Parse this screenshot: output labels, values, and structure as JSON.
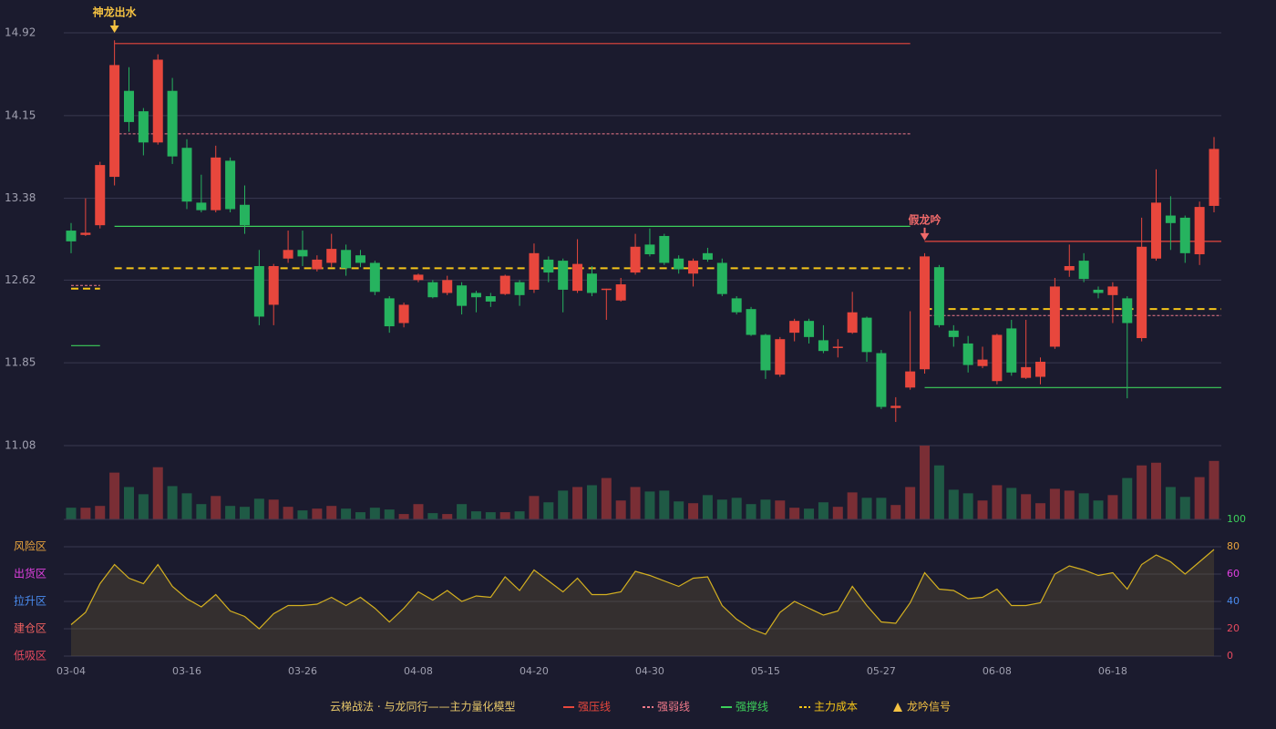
{
  "chart_data": {
    "type": "candlestick",
    "categories": [
      "03-04",
      null,
      null,
      null,
      null,
      null,
      null,
      null,
      "03-16",
      null,
      null,
      null,
      null,
      null,
      null,
      null,
      "03-26",
      null,
      null,
      null,
      null,
      null,
      null,
      null,
      "04-08",
      null,
      null,
      null,
      null,
      null,
      null,
      null,
      "04-20",
      null,
      null,
      null,
      null,
      null,
      null,
      null,
      "04-30",
      null,
      null,
      null,
      null,
      null,
      null,
      null,
      "05-15",
      null,
      null,
      null,
      null,
      null,
      null,
      null,
      "05-27",
      null,
      null,
      null,
      null,
      null,
      null,
      null,
      "06-08",
      null,
      null,
      null,
      null,
      null,
      null,
      null,
      "06-18",
      null,
      null,
      null,
      null,
      null,
      null,
      null
    ],
    "open": [
      13.08,
      13.04,
      13.13,
      13.58,
      14.38,
      14.19,
      13.9,
      14.38,
      13.85,
      13.34,
      13.27,
      13.73,
      13.32,
      12.75,
      12.39,
      12.82,
      12.9,
      12.72,
      12.78,
      12.9,
      12.85,
      12.78,
      12.45,
      12.22,
      12.62,
      12.6,
      12.5,
      12.57,
      12.5,
      12.47,
      12.49,
      12.6,
      12.53,
      12.81,
      12.8,
      12.52,
      12.68,
      12.53,
      12.43,
      12.69,
      12.95,
      13.03,
      12.82,
      12.68,
      12.87,
      12.78,
      12.45,
      12.35,
      12.11,
      11.74,
      12.13,
      12.24,
      12.06,
      11.99,
      12.13,
      12.27,
      11.94,
      11.43,
      11.62,
      11.79,
      12.74,
      12.15,
      12.03,
      11.82,
      11.68,
      12.17,
      11.71,
      11.72,
      12.0,
      12.71,
      12.8,
      12.53,
      12.48,
      12.45,
      12.08,
      12.82,
      13.22,
      13.2,
      12.86,
      13.31
    ],
    "close": [
      12.98,
      13.06,
      13.69,
      14.62,
      14.09,
      13.9,
      14.67,
      13.77,
      13.35,
      13.27,
      13.76,
      13.28,
      13.13,
      12.28,
      12.75,
      12.9,
      12.84,
      12.81,
      12.91,
      12.73,
      12.78,
      12.51,
      12.19,
      12.39,
      12.67,
      12.46,
      12.62,
      12.38,
      12.46,
      12.42,
      12.66,
      12.48,
      12.87,
      12.69,
      12.53,
      12.77,
      12.5,
      12.54,
      12.58,
      12.93,
      12.86,
      12.78,
      12.72,
      12.8,
      12.81,
      12.49,
      12.32,
      12.11,
      11.78,
      12.07,
      12.24,
      12.09,
      11.96,
      12.0,
      12.32,
      11.95,
      11.44,
      11.45,
      11.77,
      12.84,
      12.2,
      12.09,
      11.83,
      11.88,
      12.11,
      11.76,
      11.81,
      11.86,
      12.56,
      12.75,
      12.63,
      12.5,
      12.56,
      12.22,
      12.93,
      13.34,
      13.15,
      12.87,
      13.3,
      13.84
    ],
    "high": [
      13.15,
      13.38,
      13.72,
      14.85,
      14.6,
      14.22,
      14.72,
      14.5,
      13.93,
      13.6,
      13.87,
      13.76,
      13.5,
      12.9,
      12.77,
      13.08,
      13.08,
      12.85,
      13.05,
      12.95,
      12.9,
      12.8,
      12.47,
      12.41,
      12.68,
      12.62,
      12.66,
      12.6,
      12.52,
      12.5,
      12.67,
      12.62,
      12.96,
      12.84,
      12.82,
      13.0,
      12.75,
      12.54,
      12.64,
      13.05,
      13.1,
      13.05,
      12.85,
      12.82,
      12.92,
      12.82,
      12.47,
      12.37,
      12.12,
      12.09,
      12.26,
      12.26,
      12.2,
      12.07,
      12.51,
      12.28,
      11.97,
      11.53,
      12.33,
      12.87,
      12.76,
      12.2,
      12.1,
      12.0,
      12.12,
      12.25,
      12.25,
      11.9,
      12.64,
      12.95,
      12.87,
      12.56,
      12.6,
      12.47,
      13.2,
      13.65,
      13.4,
      13.22,
      13.35,
      13.95
    ],
    "low": [
      12.87,
      13.03,
      13.1,
      13.5,
      14.0,
      13.78,
      13.88,
      13.7,
      13.28,
      13.25,
      13.25,
      13.25,
      13.05,
      12.2,
      12.2,
      12.78,
      12.75,
      12.7,
      12.74,
      12.66,
      12.74,
      12.48,
      12.13,
      12.18,
      12.6,
      12.45,
      12.48,
      12.3,
      12.32,
      12.37,
      12.48,
      12.38,
      12.5,
      12.6,
      12.32,
      12.5,
      12.47,
      12.25,
      12.42,
      12.67,
      12.84,
      12.76,
      12.68,
      12.56,
      12.79,
      12.47,
      12.3,
      12.1,
      11.7,
      11.72,
      12.05,
      12.03,
      11.94,
      11.9,
      12.12,
      11.86,
      11.42,
      11.3,
      11.6,
      11.75,
      12.18,
      12.0,
      11.76,
      11.8,
      11.65,
      11.73,
      11.7,
      11.65,
      11.98,
      12.65,
      12.6,
      12.45,
      12.22,
      11.52,
      12.05,
      12.8,
      12.9,
      12.78,
      12.76,
      13.25
    ],
    "volume": [
      13,
      13,
      15,
      52,
      36,
      28,
      58,
      37,
      29,
      17,
      26,
      15,
      14,
      23,
      22,
      14,
      10,
      12,
      15,
      12,
      8,
      13,
      11,
      6,
      17,
      7,
      6,
      17,
      9,
      8,
      8,
      9,
      26,
      19,
      32,
      36,
      38,
      46,
      21,
      36,
      31,
      32,
      20,
      18,
      27,
      22,
      24,
      17,
      22,
      21,
      13,
      12,
      19,
      14,
      30,
      24,
      24,
      16,
      36,
      82,
      60,
      33,
      29,
      21,
      38,
      35,
      28,
      18,
      34,
      32,
      29,
      21,
      27,
      46,
      60,
      63,
      36,
      25,
      47,
      65
    ],
    "up_color": "#e8473d",
    "down_color": "#26b35f",
    "up_volume_color": "#7a2e35",
    "down_volume_color": "#1f5a45",
    "ylim": [
      11.08,
      14.92
    ],
    "yticks": [
      14.92,
      14.15,
      13.38,
      12.62,
      11.85,
      11.08
    ],
    "grid": true,
    "levels": [
      {
        "name": "强压线",
        "color": "#e8473d",
        "dash": false,
        "segments": [
          {
            "start": 3,
            "end": 58,
            "value": 14.82
          },
          {
            "start": 59,
            "end": 79,
            "value": 12.98
          }
        ]
      },
      {
        "name": "强弱线",
        "color": "#f07a8a",
        "dash": true,
        "segments": [
          {
            "start": 0,
            "end": 2,
            "value": 12.57
          },
          {
            "start": 3,
            "end": 58,
            "value": 13.98
          },
          {
            "start": 59,
            "end": 79,
            "value": 12.29
          }
        ]
      },
      {
        "name": "强撑线",
        "color": "#3ccf5a",
        "dash": false,
        "segments": [
          {
            "start": 0,
            "end": 2,
            "value": 12.01
          },
          {
            "start": 3,
            "end": 58,
            "value": 13.12
          },
          {
            "start": 59,
            "end": 79,
            "value": 11.62
          }
        ]
      },
      {
        "name": "主力成本",
        "color": "#f5c518",
        "dash": true,
        "segments": [
          {
            "start": 0,
            "end": 2,
            "value": 12.54
          },
          {
            "start": 3,
            "end": 58,
            "value": 12.73
          },
          {
            "start": 59,
            "end": 79,
            "value": 12.35
          }
        ]
      }
    ],
    "signals": [
      {
        "index": 3,
        "label": "神龙出水",
        "color": "#f5c242"
      },
      {
        "index": 59,
        "label": "假龙吟",
        "color": "#f06a6a"
      }
    ],
    "signal_legend": {
      "name": "龙吟信号",
      "color": "#f5c242"
    },
    "legend_title": "云梯战法 · 与龙同行——主力量化模型",
    "indicator": {
      "values": [
        23,
        32,
        53,
        67,
        57,
        53,
        67,
        51,
        42,
        36,
        45,
        33,
        29,
        20,
        31,
        37,
        37,
        38,
        43,
        37,
        43,
        35,
        25,
        35,
        47,
        41,
        48,
        40,
        44,
        43,
        58,
        48,
        63,
        55,
        47,
        57,
        45,
        45,
        47,
        62,
        59,
        55,
        51,
        57,
        58,
        37,
        27,
        20,
        16,
        32,
        40,
        35,
        30,
        33,
        51,
        37,
        25,
        24,
        39,
        61,
        49,
        48,
        42,
        43,
        49,
        37,
        37,
        39,
        60,
        66,
        63,
        59,
        61,
        49,
        67,
        74,
        69,
        60,
        69,
        78
      ],
      "color": "#d4b020",
      "ylim": [
        0,
        100
      ],
      "yticks": [
        0,
        20,
        40,
        60,
        80,
        100
      ],
      "tick_colors": [
        "#e84a5f",
        "#e84a5f",
        "#4a8cf0",
        "#e040e0",
        "#e8a33d",
        "#3ccf5a"
      ],
      "zones": [
        {
          "label": "风险区",
          "value": 80,
          "color": "#e8a33d"
        },
        {
          "label": "出货区",
          "value": 60,
          "color": "#e040e0"
        },
        {
          "label": "拉升区",
          "value": 40,
          "color": "#4a8cf0"
        },
        {
          "label": "建仓区",
          "value": 20,
          "color": "#f06060"
        },
        {
          "label": "低吸区",
          "value": 0,
          "color": "#e84a5f"
        }
      ]
    }
  }
}
